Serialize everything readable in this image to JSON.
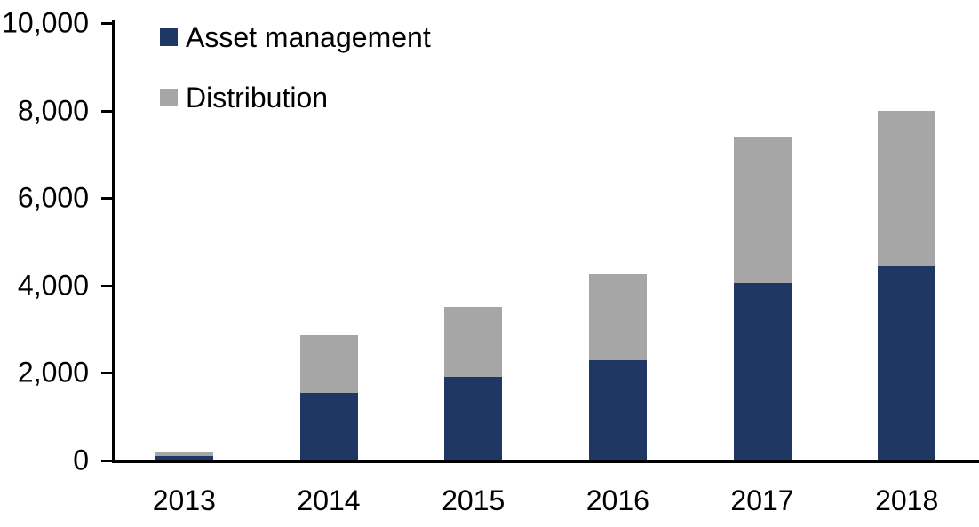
{
  "chart_data": {
    "type": "bar",
    "stacked": true,
    "title": "",
    "xlabel": "",
    "ylabel": "",
    "categories": [
      "2013",
      "2014",
      "2015",
      "2016",
      "2017",
      "2018"
    ],
    "series": [
      {
        "name": "Asset management",
        "color": "#1f3863",
        "values": [
          100,
          1550,
          1900,
          2300,
          4050,
          4450
        ]
      },
      {
        "name": "Distribution",
        "color": "#a6a6a6",
        "values": [
          100,
          1300,
          1600,
          1950,
          3350,
          3550
        ]
      }
    ],
    "totals": [
      200,
      2850,
      3500,
      4250,
      7400,
      8000
    ],
    "ylim": [
      0,
      10000
    ],
    "ytick_interval": 2000,
    "ytick_values": [
      0,
      2000,
      4000,
      6000,
      8000,
      10000
    ],
    "ytick_labels": [
      "0",
      "2,000",
      "4,000",
      "6,000",
      "8,000",
      "10,000"
    ],
    "grid": false,
    "legend_position": "top-left",
    "axis_color": "#000000",
    "background_color": "#ffffff"
  }
}
